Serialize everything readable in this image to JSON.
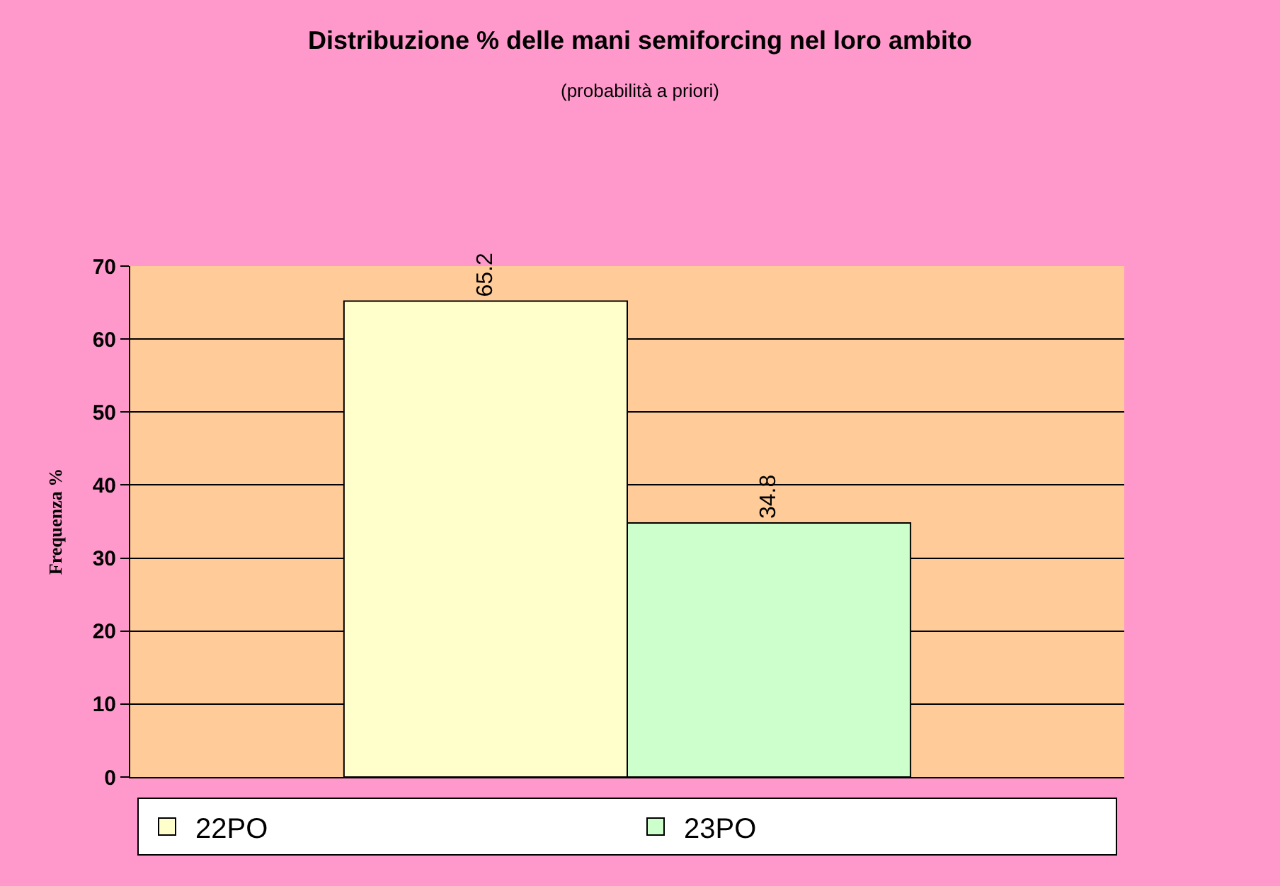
{
  "chart_data": {
    "type": "bar",
    "title": "Distribuzione % delle mani semiforcing nel loro ambito",
    "subtitle": "(probabilità a priori)",
    "ylabel": "Frequenza %",
    "categories": [
      null
    ],
    "series": [
      {
        "name": "22PO",
        "color": "#ffffcc",
        "values": [
          65.2
        ]
      },
      {
        "name": "23PO",
        "color": "#ccffcc",
        "values": [
          34.8
        ]
      }
    ],
    "ylim": [
      0,
      70
    ],
    "yticks": [
      0,
      10,
      20,
      30,
      40,
      50,
      60,
      70
    ],
    "grid": "y",
    "legend": "bottom",
    "data_labels": true
  }
}
